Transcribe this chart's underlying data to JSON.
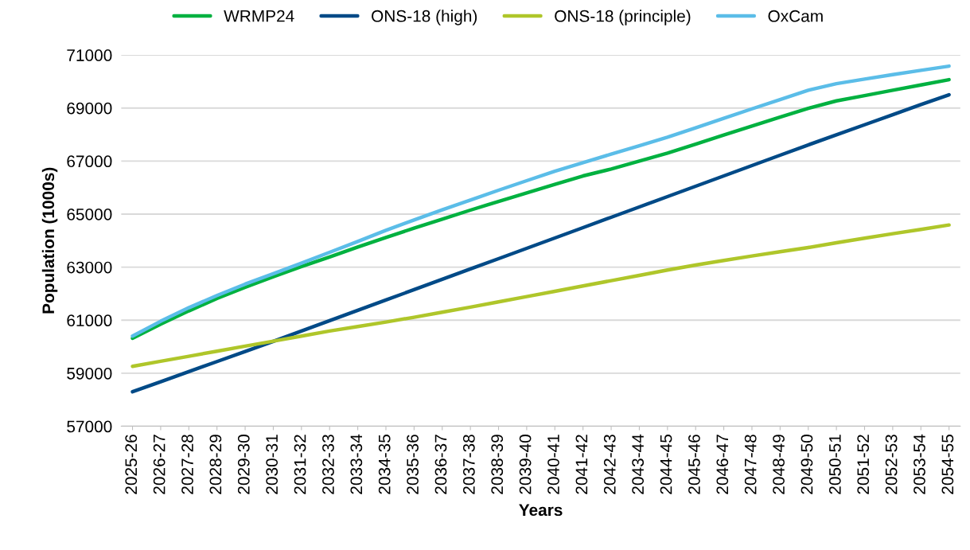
{
  "chart_data": {
    "type": "line",
    "xlabel": "Years",
    "ylabel": "Population (1000s)",
    "categories": [
      "2025-26",
      "2026-27",
      "2027-28",
      "2028-29",
      "2029-30",
      "2030-31",
      "2031-32",
      "2032-33",
      "2033-34",
      "2034-35",
      "2035-36",
      "2036-37",
      "2037-38",
      "2038-39",
      "2039-40",
      "2040-41",
      "2041-42",
      "2042-43",
      "2043-44",
      "2044-45",
      "2045-46",
      "2046-47",
      "2047-48",
      "2048-49",
      "2049-50",
      "2050-51",
      "2051-52",
      "2052-53",
      "2053-54",
      "2054-55"
    ],
    "series": [
      {
        "name": "WRMP24",
        "color": "#00b140",
        "values": [
          60320,
          60850,
          61350,
          61820,
          62240,
          62640,
          63020,
          63380,
          63760,
          64120,
          64470,
          64810,
          65150,
          65480,
          65800,
          66120,
          66440,
          66700,
          67000,
          67300,
          67640,
          67980,
          68320,
          68660,
          68990,
          69270,
          69470,
          69670,
          69870,
          70070
        ]
      },
      {
        "name": "ONS-18 (high)",
        "color": "#004a87",
        "values": [
          58300,
          58680,
          59060,
          59440,
          59820,
          60200,
          60590,
          60980,
          61370,
          61760,
          62150,
          62540,
          62930,
          63320,
          63710,
          64100,
          64490,
          64880,
          65270,
          65660,
          66050,
          66440,
          66830,
          67220,
          67610,
          67990,
          68370,
          68750,
          69130,
          69500
        ]
      },
      {
        "name": "ONS-18 (principle)",
        "color": "#afc62a",
        "values": [
          59260,
          59450,
          59640,
          59830,
          60020,
          60210,
          60400,
          60590,
          60760,
          60930,
          61110,
          61300,
          61490,
          61690,
          61890,
          62090,
          62290,
          62490,
          62690,
          62890,
          63080,
          63250,
          63420,
          63580,
          63740,
          63920,
          64090,
          64260,
          64420,
          64590
        ]
      },
      {
        "name": "OxCam",
        "color": "#5bbde8",
        "values": [
          60400,
          60960,
          61470,
          61930,
          62360,
          62750,
          63150,
          63560,
          63970,
          64390,
          64780,
          65160,
          65530,
          65900,
          66260,
          66620,
          66940,
          67260,
          67580,
          67900,
          68250,
          68610,
          68970,
          69320,
          69670,
          69920,
          70090,
          70260,
          70420,
          70580
        ]
      }
    ],
    "ylim": [
      57000,
      71000
    ],
    "yticks": [
      57000,
      59000,
      61000,
      63000,
      65000,
      67000,
      69000,
      71000
    ],
    "grid": "y",
    "legend": "top",
    "marker": "none",
    "line_style": "solid"
  }
}
